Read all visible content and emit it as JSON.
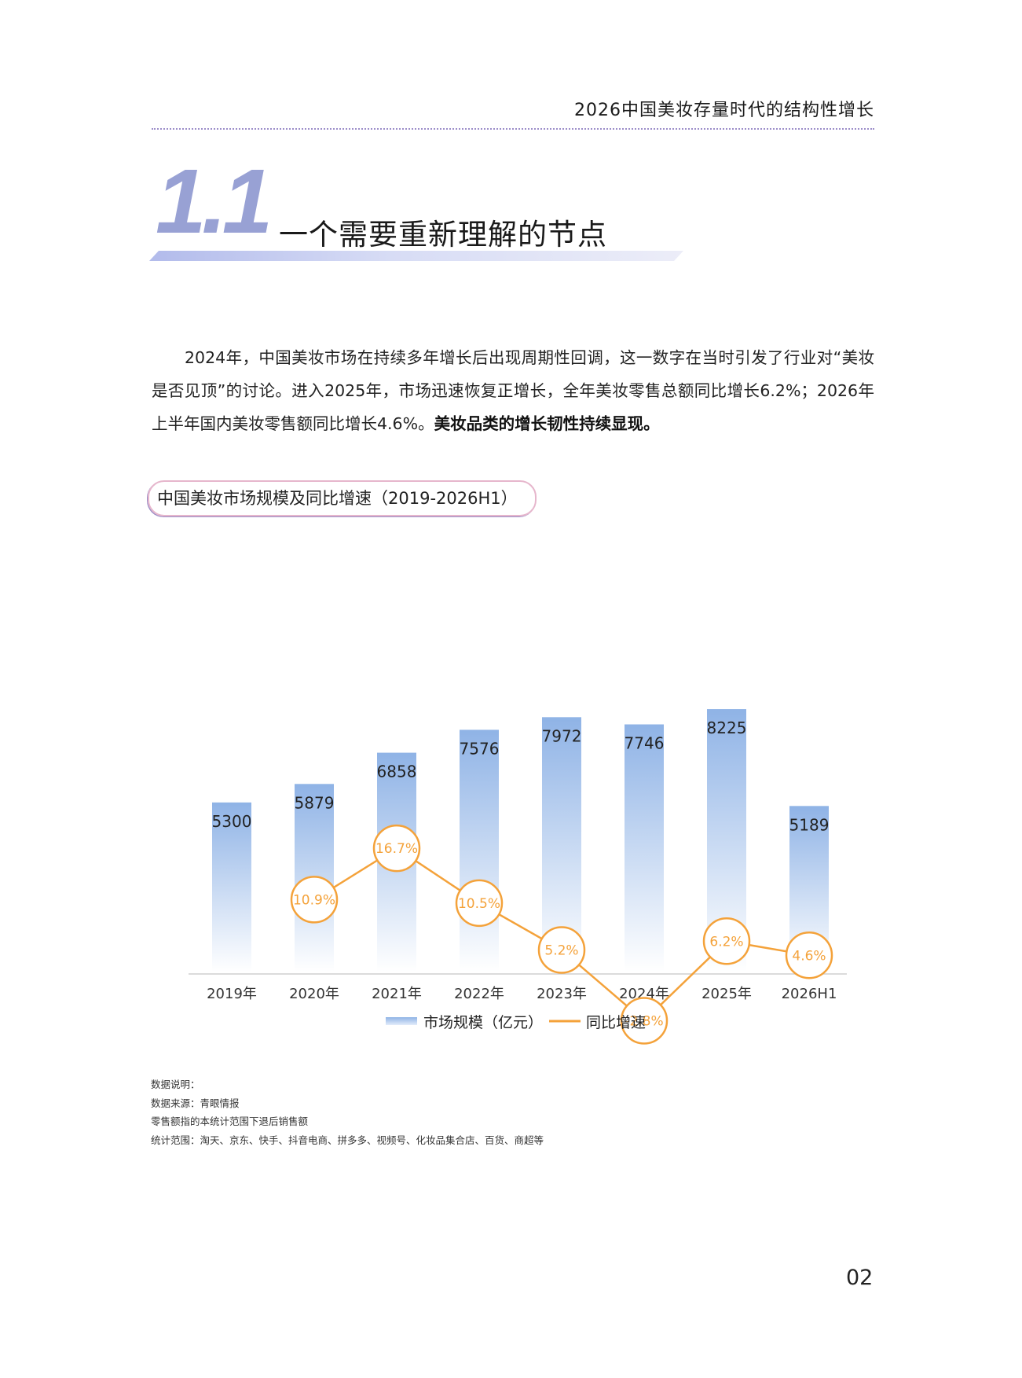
{
  "header": {
    "title": "2026中国美妆存量时代的结构性增长"
  },
  "section": {
    "number": "1.1",
    "title": "一个需要重新理解的节点"
  },
  "intro": {
    "text": "2024年，中国美妆市场在持续多年增长后出现周期性回调，这一数字在当时引发了行业对“美妆是否见顶”的讨论。进入2025年，市场迅速恢复正增长，全年美妆零售总额同比增长6.2%；2026年上半年国内美妆零售额同比增长4.6%。",
    "bold": "美妆品类的增长韧性持续显现。"
  },
  "chart_data": {
    "type": "bar",
    "title": "中国美妆市场规模及同比增速（2019-2026H1）",
    "categories": [
      "2019年",
      "2020年",
      "2021年",
      "2022年",
      "2023年",
      "2024年",
      "2025年",
      "2026H1"
    ],
    "series": [
      {
        "name": "市场规模（亿元）",
        "type": "bar",
        "values": [
          5300,
          5879,
          6858,
          7576,
          7972,
          7746,
          8225,
          5189
        ],
        "labels": [
          "5300",
          "5879",
          "6858",
          "7576",
          "7972",
          "7746",
          "8225",
          "5189"
        ]
      },
      {
        "name": "同比增速",
        "type": "line",
        "values": [
          null,
          10.9,
          16.7,
          10.5,
          5.2,
          -2.8,
          6.2,
          4.6
        ],
        "labels": [
          "",
          "10.9%",
          "16.7%",
          "10.5%",
          "5.2%",
          "-2.8%",
          "6.2%",
          "4.6%"
        ]
      }
    ],
    "legend_position": "bottom",
    "grid": false,
    "colors": {
      "bar_top": "#8fb3e6",
      "bar_bottom": "#ffffff",
      "line": "#f4a23a",
      "label": "#222222"
    }
  },
  "notes": {
    "line1": "数据说明：",
    "line2": "数据来源：青眼情报",
    "line3": "零售额指的本统计范围下退后销售额",
    "line4": "统计范围：淘天、京东、快手、抖音电商、拼多多、视频号、化妆品集合店、百货、商超等"
  },
  "page": {
    "number": "02"
  }
}
